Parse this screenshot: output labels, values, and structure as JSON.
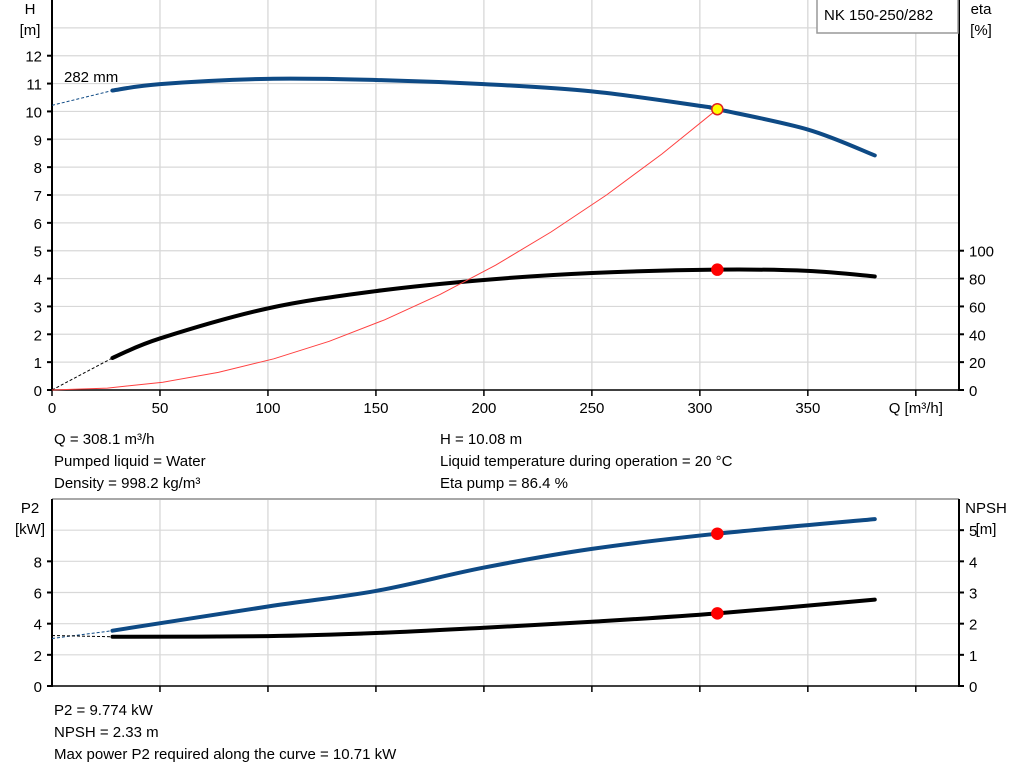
{
  "chart_data": [
    {
      "type": "line",
      "title": "",
      "legend_box": "NK 150-250/282",
      "impeller_label": "282 mm",
      "xlabel": "Q [m³/h]",
      "ylabel_left": [
        "H",
        "[m]"
      ],
      "ylabel_right": [
        "eta",
        "[%]"
      ],
      "xlim": [
        0,
        420
      ],
      "ylim_left": [
        0,
        14
      ],
      "ylim_right": [
        0,
        280
      ],
      "x_ticks": [
        0,
        50,
        100,
        150,
        200,
        250,
        300,
        350
      ],
      "y_ticks_left": [
        0,
        1,
        2,
        3,
        4,
        5,
        6,
        7,
        8,
        9,
        10,
        11,
        12
      ],
      "y_ticks_right": [
        0,
        20,
        40,
        60,
        80,
        100
      ],
      "grid": true,
      "series": [
        {
          "axis": "left",
          "color": "#0e4a85",
          "q": [
            28,
            50,
            100,
            150,
            200,
            250,
            300,
            308.1,
            350,
            381
          ],
          "values": [
            10.75,
            10.98,
            11.17,
            11.13,
            10.98,
            10.72,
            10.2,
            10.08,
            9.35,
            8.42
          ],
          "extrapolated_from": [
            0,
            10.22
          ]
        },
        {
          "axis": "right",
          "color": "#000000",
          "q": [
            28,
            50,
            100,
            150,
            200,
            250,
            308.1,
            350,
            381
          ],
          "values": [
            23,
            37,
            58.6,
            71,
            79,
            84,
            86.4,
            85.5,
            81.5
          ],
          "extrapolated_from": [
            0,
            0
          ]
        },
        {
          "axis": "left",
          "color": "#ff4040",
          "type": "system_curve",
          "q_end": 308.1,
          "h_end": 10.08
        }
      ],
      "operating_points": [
        {
          "axis": "left",
          "q": 308.1,
          "value": 10.08,
          "color": "#ffff00"
        },
        {
          "axis": "right",
          "q": 308.1,
          "value": 86.4,
          "color": "#ff0000"
        }
      ]
    },
    {
      "type": "line",
      "title": "",
      "ylabel_left": [
        "P2",
        "[kW]"
      ],
      "ylabel_right": [
        "NPSH",
        "[m]"
      ],
      "xlim": [
        0,
        420
      ],
      "ylim_left": [
        0,
        12
      ],
      "ylim_right": [
        0,
        6
      ],
      "y_ticks_left": [
        0,
        2,
        4,
        6,
        8
      ],
      "y_ticks_right": [
        0,
        1,
        2,
        3,
        4,
        5
      ],
      "grid": true,
      "series": [
        {
          "axis": "left",
          "color": "#0e4a85",
          "q": [
            28,
            100,
            150,
            200,
            250,
            308.1,
            381
          ],
          "values": [
            3.55,
            5.1,
            6.1,
            7.6,
            8.8,
            9.774,
            10.71
          ],
          "extrapolated_from": [
            0,
            3.05
          ]
        },
        {
          "axis": "right",
          "color": "#000000",
          "q": [
            28,
            100,
            150,
            200,
            250,
            308.1,
            381
          ],
          "values": [
            1.58,
            1.6,
            1.7,
            1.87,
            2.06,
            2.33,
            2.77
          ],
          "extrapolated_from": [
            0,
            1.62
          ]
        }
      ],
      "operating_points": [
        {
          "axis": "left",
          "q": 308.1,
          "value": 9.774,
          "color": "#ff0000"
        },
        {
          "axis": "right",
          "q": 308.1,
          "value": 2.33,
          "color": "#ff0000"
        }
      ]
    }
  ],
  "info_top": {
    "q": "Q = 308.1 m³/h",
    "liquid": "Pumped liquid = Water",
    "density": "Density = 998.2 kg/m³",
    "h": "H = 10.08 m",
    "temp": "Liquid temperature during operation = 20 °C",
    "eta": "Eta pump = 86.4 %"
  },
  "info_bottom": {
    "p2": "P2 = 9.774 kW",
    "npsh": "NPSH = 2.33 m",
    "max_power": "Max power P2 required along the curve = 10.71 kW"
  }
}
